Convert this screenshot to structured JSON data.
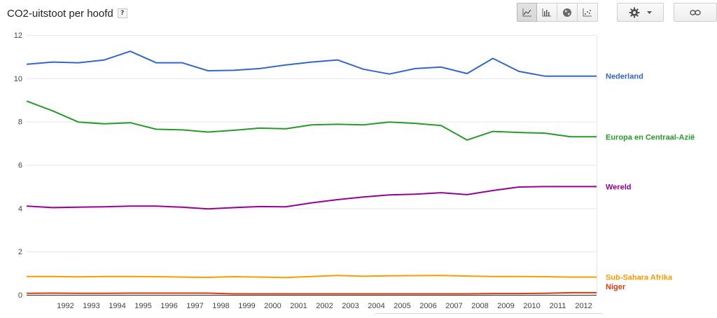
{
  "header": {
    "title": "CO2-uitstoot per hoofd",
    "help_label": "?"
  },
  "toolbar": {
    "view_buttons": [
      {
        "icon": "line-chart-icon",
        "active": true
      },
      {
        "icon": "bar-chart-icon",
        "active": false
      },
      {
        "icon": "globe-map-icon",
        "active": false
      },
      {
        "icon": "scatter-chart-icon",
        "active": false
      }
    ],
    "settings_icon": "gear-icon",
    "settings_dropdown_icon": "caret-down-icon",
    "link_icon": "link-icon"
  },
  "chart_data": {
    "type": "line",
    "title": "",
    "xlabel": "",
    "ylabel": "",
    "ylim": [
      0,
      12
    ],
    "yticks": [
      0,
      2,
      4,
      6,
      8,
      10,
      12
    ],
    "grid": true,
    "legend": "right (inline labels at line ends)",
    "x": [
      1991,
      1992,
      1993,
      1994,
      1995,
      1996,
      1997,
      1998,
      1999,
      2000,
      2001,
      2002,
      2003,
      2004,
      2005,
      2006,
      2007,
      2008,
      2009,
      2010,
      2011,
      2012,
      2013
    ],
    "xtick_labels": [
      "1992",
      "1993",
      "1994",
      "1995",
      "1996",
      "1997",
      "1998",
      "1999",
      "2000",
      "2001",
      "2002",
      "2003",
      "2004",
      "2005",
      "2006",
      "2007",
      "2008",
      "2009",
      "2010",
      "2011",
      "2012"
    ],
    "series": [
      {
        "name": "Nederland",
        "color": "#3366cc",
        "values": [
          10.65,
          10.75,
          10.72,
          10.85,
          11.25,
          10.72,
          10.72,
          10.35,
          10.37,
          10.45,
          10.62,
          10.75,
          10.85,
          10.42,
          10.2,
          10.45,
          10.52,
          10.22,
          10.92,
          10.32,
          10.1,
          10.1,
          10.1
        ]
      },
      {
        "name": "Europa en Centraal-Azië",
        "color": "#279b27",
        "values": [
          8.95,
          8.5,
          7.98,
          7.9,
          7.95,
          7.65,
          7.62,
          7.52,
          7.6,
          7.7,
          7.67,
          7.85,
          7.88,
          7.85,
          7.98,
          7.92,
          7.82,
          7.15,
          7.55,
          7.5,
          7.47,
          7.3,
          7.3
        ]
      },
      {
        "name": "Wereld",
        "color": "#990099",
        "values": [
          4.1,
          4.03,
          4.05,
          4.07,
          4.1,
          4.1,
          4.05,
          3.97,
          4.03,
          4.08,
          4.07,
          4.25,
          4.4,
          4.52,
          4.62,
          4.65,
          4.72,
          4.63,
          4.82,
          4.98,
          5.0,
          5.0,
          5.0
        ]
      },
      {
        "name": "Sub-Sahara Afrika",
        "color": "#ff9900",
        "values": [
          0.85,
          0.85,
          0.83,
          0.85,
          0.85,
          0.84,
          0.82,
          0.81,
          0.84,
          0.82,
          0.8,
          0.85,
          0.9,
          0.86,
          0.88,
          0.89,
          0.9,
          0.87,
          0.85,
          0.85,
          0.84,
          0.82,
          0.82
        ]
      },
      {
        "name": "Niger",
        "color": "#dc3912",
        "values": [
          0.07,
          0.08,
          0.07,
          0.07,
          0.08,
          0.08,
          0.08,
          0.08,
          0.05,
          0.05,
          0.05,
          0.05,
          0.05,
          0.05,
          0.05,
          0.05,
          0.05,
          0.05,
          0.06,
          0.06,
          0.07,
          0.1,
          0.1
        ]
      }
    ]
  }
}
